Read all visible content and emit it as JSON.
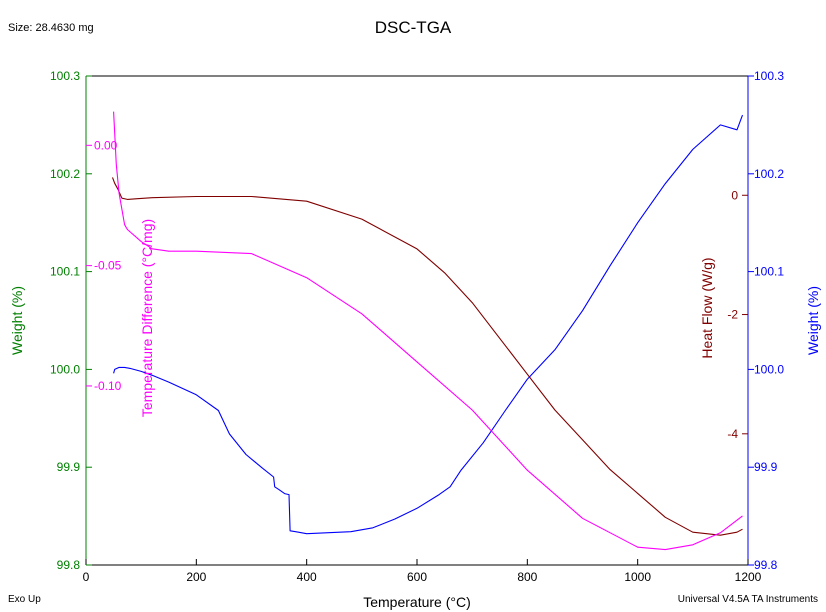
{
  "header": {
    "size_label": "Size:  28.4630 mg",
    "title": "DSC-TGA"
  },
  "footer": {
    "left": "Exo Up",
    "right": "Universal V4.5A TA Instruments"
  },
  "colors": {
    "weight_left": "#008000",
    "weight_right": "#0000ff",
    "heat_flow": "#800000",
    "temp_diff": "#ff00ff"
  },
  "chart_data": {
    "type": "line",
    "title": "DSC-TGA",
    "xlabel": "Temperature (°C)",
    "xlim": [
      0,
      1200
    ],
    "x_ticks": [
      0,
      200,
      400,
      600,
      800,
      1000,
      1200
    ],
    "axes": {
      "weight_left": {
        "label": "Weight (%)",
        "lim": [
          99.8,
          100.3
        ],
        "ticks": [
          "99.8",
          "99.9",
          "100.0",
          "100.1",
          "100.2",
          "100.3"
        ]
      },
      "temp_diff": {
        "label": "Temperature Difference (°C/mg)",
        "lim": [
          -0.1744,
          0.0288
        ],
        "ticks": [
          "0.00",
          "-0.05",
          "-0.10"
        ]
      },
      "heat_flow": {
        "label": "Heat Flow (W/g)",
        "lim": [
          -6.2,
          2.0
        ],
        "ticks": [
          "0",
          "-2",
          "-4"
        ]
      },
      "weight_right": {
        "label": "Weight (%)",
        "lim": [
          99.8,
          100.3
        ],
        "ticks": [
          "99.8",
          "99.9",
          "100.0",
          "100.1",
          "100.2",
          "100.3"
        ]
      }
    },
    "series": [
      {
        "name": "Weight (%)",
        "axis": "weight_right",
        "color": "#0000ff",
        "x": [
          50,
          52,
          60,
          70,
          80,
          100,
          120,
          150,
          200,
          240,
          260,
          290,
          320,
          340,
          342,
          350,
          360,
          368,
          370,
          380,
          400,
          440,
          480,
          520,
          560,
          600,
          640,
          660,
          680,
          720,
          760,
          800,
          850,
          900,
          950,
          1000,
          1050,
          1100,
          1150,
          1180,
          1190
        ],
        "y": [
          99.996,
          100.0,
          100.002,
          100.002,
          100.001,
          99.998,
          99.994,
          99.987,
          99.974,
          99.958,
          99.934,
          99.913,
          99.899,
          99.89,
          99.88,
          99.877,
          99.873,
          99.872,
          99.835,
          99.834,
          99.832,
          99.833,
          99.834,
          99.838,
          99.847,
          99.858,
          99.872,
          99.88,
          99.897,
          99.925,
          99.958,
          99.99,
          100.02,
          100.06,
          100.106,
          100.15,
          100.19,
          100.225,
          100.25,
          100.245,
          100.26
        ]
      },
      {
        "name": "Heat Flow (W/g)",
        "axis": "heat_flow",
        "color": "#800000",
        "x": [
          48,
          52,
          58,
          65,
          75,
          90,
          120,
          200,
          300,
          400,
          500,
          600,
          650,
          700,
          750,
          800,
          850,
          900,
          950,
          1000,
          1050,
          1100,
          1150,
          1180,
          1190
        ],
        "y": [
          0.3,
          0.2,
          0.1,
          -0.05,
          -0.07,
          -0.06,
          -0.04,
          -0.02,
          -0.02,
          -0.1,
          -0.4,
          -0.9,
          -1.3,
          -1.8,
          -2.4,
          -3.0,
          -3.6,
          -4.1,
          -4.6,
          -5.0,
          -5.4,
          -5.65,
          -5.7,
          -5.65,
          -5.6
        ]
      },
      {
        "name": "Temperature Difference (°C/mg)",
        "axis": "temp_diff",
        "color": "#ff00ff",
        "x": [
          50,
          55,
          60,
          70,
          75,
          80,
          100,
          120,
          150,
          200,
          300,
          400,
          500,
          600,
          700,
          800,
          900,
          1000,
          1050,
          1100,
          1150,
          1190
        ],
        "y": [
          0.014,
          -0.008,
          -0.02,
          -0.033,
          -0.035,
          -0.036,
          -0.04,
          -0.043,
          -0.044,
          -0.044,
          -0.045,
          -0.055,
          -0.07,
          -0.09,
          -0.11,
          -0.135,
          -0.155,
          -0.167,
          -0.168,
          -0.166,
          -0.161,
          -0.154
        ]
      }
    ]
  }
}
